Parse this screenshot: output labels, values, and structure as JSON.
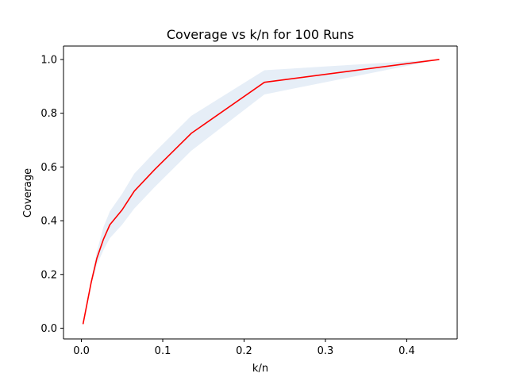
{
  "chart_data": {
    "type": "line",
    "title": "Coverage vs k/n for 100 Runs",
    "xlabel": "k/n",
    "ylabel": "Coverage",
    "xlim": [
      -0.022,
      0.462
    ],
    "ylim": [
      -0.04,
      1.05
    ],
    "xticks": [
      0.0,
      0.1,
      0.2,
      0.3,
      0.4
    ],
    "xtick_labels": [
      "0.0",
      "0.1",
      "0.2",
      "0.3",
      "0.4"
    ],
    "yticks": [
      0.0,
      0.2,
      0.4,
      0.6,
      0.8,
      1.0
    ],
    "ytick_labels": [
      "0.0",
      "0.2",
      "0.4",
      "0.6",
      "0.8",
      "1.0"
    ],
    "grid": false,
    "legend": "none",
    "series": [
      {
        "color": "#ff0000",
        "x": [
          0.002,
          0.012,
          0.019,
          0.027,
          0.035,
          0.05,
          0.065,
          0.09,
          0.135,
          0.225,
          0.44
        ],
        "y": [
          0.015,
          0.17,
          0.26,
          0.33,
          0.385,
          0.44,
          0.51,
          0.59,
          0.725,
          0.915,
          1.0
        ],
        "band_upper": [
          0.015,
          0.18,
          0.285,
          0.375,
          0.435,
          0.5,
          0.575,
          0.655,
          0.79,
          0.96,
          1.0
        ],
        "band_lower": [
          0.015,
          0.16,
          0.235,
          0.29,
          0.335,
          0.385,
          0.445,
          0.525,
          0.66,
          0.87,
          1.0
        ],
        "band_color": "#e6eef7"
      }
    ]
  }
}
